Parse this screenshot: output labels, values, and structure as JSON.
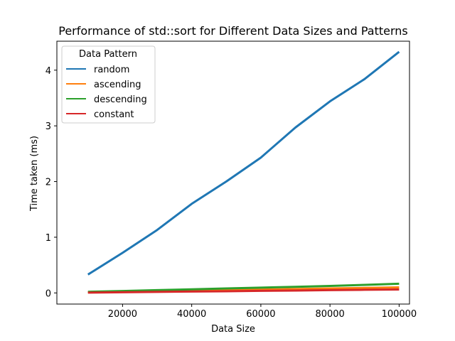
{
  "chart_data": {
    "type": "line",
    "title": "Performance of std::sort for Different Data Sizes and Patterns",
    "xlabel": "Data Size",
    "ylabel": "Time taken (ms)",
    "x": [
      10000,
      20000,
      30000,
      40000,
      50000,
      60000,
      70000,
      80000,
      90000,
      100000
    ],
    "xlim": [
      1000,
      103000
    ],
    "ylim": [
      -0.2,
      4.52
    ],
    "x_ticks": [
      20000,
      40000,
      60000,
      80000,
      100000
    ],
    "y_ticks": [
      0,
      1,
      2,
      3,
      4
    ],
    "grid": false,
    "legend": {
      "title": "Data Pattern",
      "placement": "top-left"
    },
    "series": [
      {
        "name": "random",
        "color": "#1f77b4",
        "values": [
          0.33,
          0.72,
          1.13,
          1.6,
          2.0,
          2.43,
          2.97,
          3.44,
          3.84,
          4.33
        ]
      },
      {
        "name": "ascending",
        "color": "#ff7f0e",
        "values": [
          0.01,
          0.02,
          0.03,
          0.04,
          0.05,
          0.06,
          0.07,
          0.08,
          0.09,
          0.1
        ]
      },
      {
        "name": "descending",
        "color": "#2ca02c",
        "values": [
          0.02,
          0.035,
          0.05,
          0.065,
          0.08,
          0.095,
          0.11,
          0.125,
          0.145,
          0.165
        ]
      },
      {
        "name": "constant",
        "color": "#d62728",
        "values": [
          0.005,
          0.012,
          0.018,
          0.025,
          0.03,
          0.037,
          0.043,
          0.05,
          0.056,
          0.062
        ]
      }
    ]
  }
}
